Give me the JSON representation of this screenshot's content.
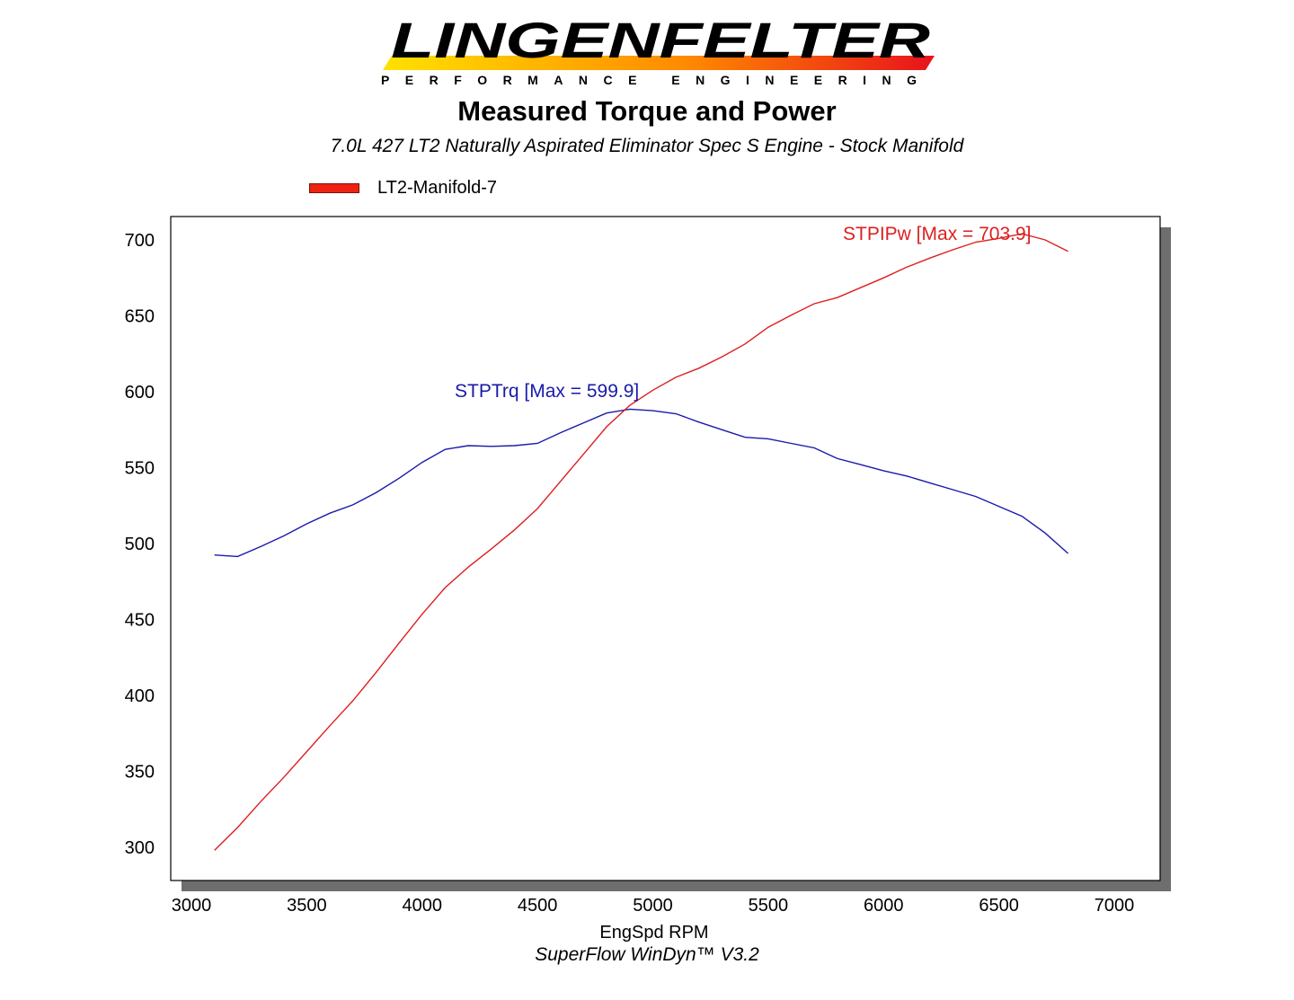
{
  "header": {
    "brand": "LINGENFELTER",
    "tagline": "PERFORMANCE ENGINEERING"
  },
  "chart_data": {
    "type": "line",
    "title": "Measured Torque and Power",
    "subtitle": "7.0L 427 LT2 Naturally Aspirated Eliminator Spec S Engine - Stock Manifold",
    "legend": {
      "label": "LT2-Manifold-7",
      "placement": "top-left",
      "color": "#ee2211"
    },
    "xlabel": "EngSpd RPM",
    "ylabel": "",
    "footer": "SuperFlow WinDyn™ V3.2",
    "xlim": [
      3000,
      7000
    ],
    "ylim": [
      290,
      715
    ],
    "x_ticks": [
      3000,
      3500,
      4000,
      4500,
      5000,
      5500,
      6000,
      6500,
      7000
    ],
    "y_ticks": [
      300,
      350,
      400,
      450,
      500,
      550,
      600,
      650,
      700
    ],
    "grid": false,
    "series": [
      {
        "name": "STPTrq",
        "color": "#1a1aaa",
        "annotation": "STPTrq [Max = 599.9]",
        "x": [
          3100,
          3200,
          3300,
          3400,
          3500,
          3600,
          3700,
          3800,
          3900,
          4000,
          4100,
          4200,
          4300,
          4400,
          4500,
          4600,
          4700,
          4800,
          4900,
          5000,
          5100,
          5200,
          5300,
          5400,
          5500,
          5600,
          5700,
          5800,
          5900,
          6000,
          6100,
          6200,
          6300,
          6400,
          6500,
          6600,
          6700,
          6800
        ],
        "values": [
          492.5,
          491.5,
          498.0,
          505.0,
          513.0,
          520.0,
          525.5,
          533.5,
          543.0,
          553.5,
          562.0,
          564.5,
          564.0,
          564.5,
          566.0,
          573.0,
          579.5,
          586.0,
          588.5,
          587.5,
          585.5,
          580.0,
          575.0,
          570.0,
          569.0,
          566.0,
          563.0,
          556.0,
          552.0,
          548.0,
          544.5,
          540.0,
          535.5,
          531.0,
          524.5,
          518.0,
          507.0,
          493.5
        ]
      },
      {
        "name": "STPIPw",
        "color": "#dd1f1f",
        "annotation": "STPIPw [Max = 703.9]",
        "x": [
          3100,
          3200,
          3300,
          3400,
          3500,
          3600,
          3700,
          3800,
          3900,
          4000,
          4100,
          4200,
          4300,
          4400,
          4500,
          4600,
          4700,
          4800,
          4900,
          5000,
          5100,
          5200,
          5300,
          5400,
          5500,
          5600,
          5700,
          5800,
          5900,
          6000,
          6100,
          6200,
          6300,
          6400,
          6500,
          6600,
          6700,
          6800
        ],
        "values": [
          298.0,
          313.0,
          330.0,
          346.0,
          363.0,
          380.0,
          396.5,
          415.0,
          434.5,
          453.5,
          471.0,
          484.5,
          496.5,
          509.0,
          523.0,
          541.0,
          559.0,
          577.0,
          591.0,
          601.0,
          609.5,
          615.5,
          623.0,
          631.5,
          642.5,
          650.5,
          658.0,
          662.0,
          668.5,
          675.0,
          682.0,
          688.0,
          693.5,
          698.5,
          701.0,
          704.0,
          700.0,
          692.5
        ]
      }
    ]
  }
}
